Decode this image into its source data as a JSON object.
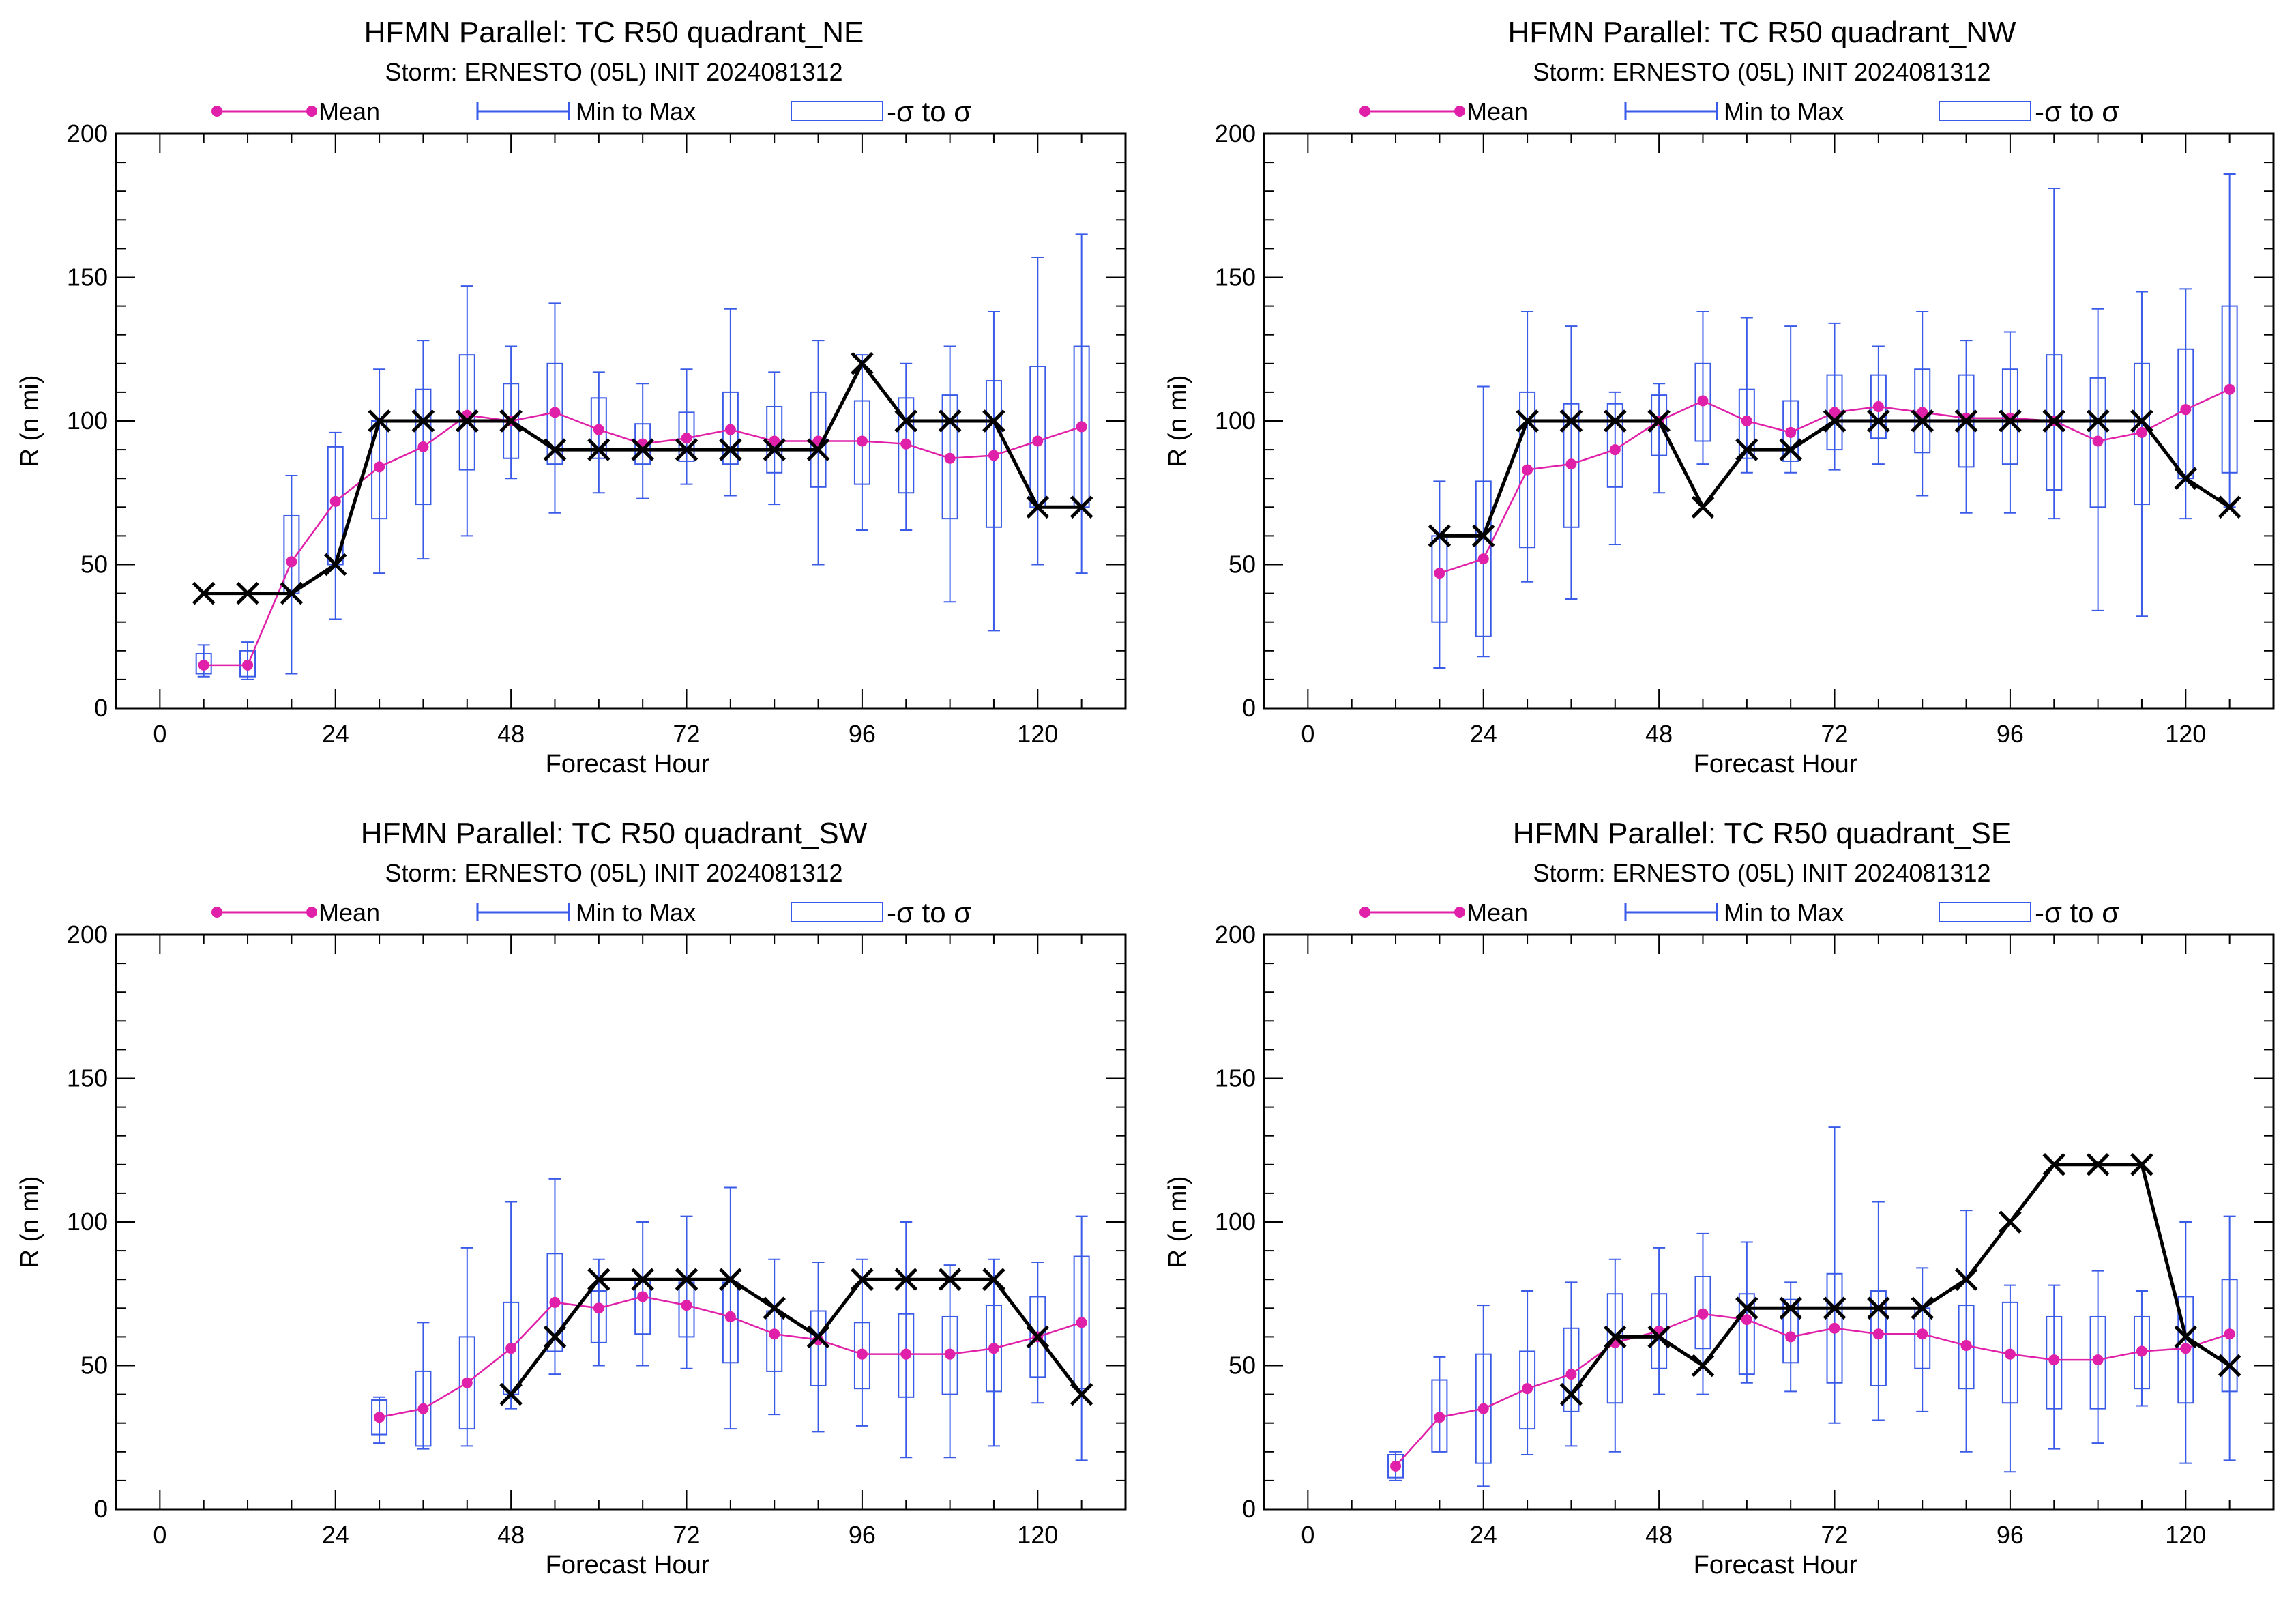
{
  "legend": {
    "mean_label": "Mean",
    "range_label": "Min to Max",
    "sigma_label": "-σ to σ"
  },
  "colors": {
    "mean": "#e020a8",
    "range": "#3a5ae8",
    "obs": "#000000",
    "axis": "#000000"
  },
  "chart_data": [
    {
      "type": "box",
      "title": "HFMN Parallel: TC  R50 quadrant_NE",
      "subtitle": "Storm: ERNESTO (05L) INIT 2024081312",
      "xlabel": "Forecast Hour",
      "ylabel": "R (n mi)",
      "xlim": [
        -6,
        132
      ],
      "ylim": [
        0,
        200
      ],
      "xticks": [
        0,
        24,
        48,
        72,
        96,
        120
      ],
      "yticks": [
        0,
        50,
        100,
        150,
        200
      ],
      "mean": [
        [
          6,
          15
        ],
        [
          12,
          15
        ],
        [
          18,
          51
        ],
        [
          24,
          72
        ],
        [
          30,
          84
        ],
        [
          36,
          91
        ],
        [
          42,
          102
        ],
        [
          48,
          100
        ],
        [
          54,
          103
        ],
        [
          60,
          97
        ],
        [
          66,
          92
        ],
        [
          72,
          94
        ],
        [
          78,
          97
        ],
        [
          84,
          93
        ],
        [
          90,
          93
        ],
        [
          96,
          93
        ],
        [
          102,
          92
        ],
        [
          108,
          87
        ],
        [
          114,
          88
        ],
        [
          120,
          93
        ],
        [
          126,
          98
        ]
      ],
      "boxes": [
        [
          6,
          11,
          22,
          12,
          19
        ],
        [
          12,
          10,
          23,
          11,
          20
        ],
        [
          18,
          12,
          81,
          40,
          67
        ],
        [
          24,
          31,
          96,
          50,
          91
        ],
        [
          30,
          47,
          118,
          66,
          100
        ],
        [
          36,
          52,
          128,
          71,
          111
        ],
        [
          42,
          60,
          147,
          83,
          123
        ],
        [
          48,
          80,
          126,
          87,
          113
        ],
        [
          54,
          68,
          141,
          85,
          120
        ],
        [
          60,
          75,
          117,
          87,
          108
        ],
        [
          66,
          73,
          113,
          85,
          99
        ],
        [
          72,
          78,
          118,
          86,
          103
        ],
        [
          78,
          74,
          139,
          85,
          110
        ],
        [
          84,
          71,
          117,
          82,
          105
        ],
        [
          90,
          50,
          128,
          77,
          110
        ],
        [
          96,
          62,
          123,
          78,
          107
        ],
        [
          102,
          62,
          120,
          75,
          108
        ],
        [
          108,
          37,
          126,
          66,
          109
        ],
        [
          114,
          27,
          138,
          63,
          114
        ],
        [
          120,
          50,
          157,
          70,
          119
        ],
        [
          126,
          47,
          165,
          70,
          126
        ]
      ],
      "obs": [
        [
          6,
          40
        ],
        [
          12,
          40
        ],
        [
          18,
          40
        ],
        [
          24,
          50
        ],
        [
          30,
          100
        ],
        [
          36,
          100
        ],
        [
          42,
          100
        ],
        [
          48,
          100
        ],
        [
          54,
          90
        ],
        [
          60,
          90
        ],
        [
          66,
          90
        ],
        [
          72,
          90
        ],
        [
          78,
          90
        ],
        [
          84,
          90
        ],
        [
          90,
          90
        ],
        [
          96,
          120
        ],
        [
          102,
          100
        ],
        [
          108,
          100
        ],
        [
          114,
          100
        ],
        [
          120,
          70
        ],
        [
          126,
          70
        ]
      ]
    },
    {
      "type": "box",
      "title": "HFMN Parallel: TC  R50 quadrant_NW",
      "subtitle": "Storm: ERNESTO (05L) INIT 2024081312",
      "xlabel": "Forecast Hour",
      "ylabel": "R (n mi)",
      "xlim": [
        -6,
        132
      ],
      "ylim": [
        0,
        200
      ],
      "xticks": [
        0,
        24,
        48,
        72,
        96,
        120
      ],
      "yticks": [
        0,
        50,
        100,
        150,
        200
      ],
      "mean": [
        [
          18,
          47
        ],
        [
          24,
          52
        ],
        [
          30,
          83
        ],
        [
          36,
          85
        ],
        [
          42,
          90
        ],
        [
          48,
          100
        ],
        [
          54,
          107
        ],
        [
          60,
          100
        ],
        [
          66,
          96
        ],
        [
          72,
          103
        ],
        [
          78,
          105
        ],
        [
          84,
          103
        ],
        [
          90,
          101
        ],
        [
          96,
          101
        ],
        [
          102,
          100
        ],
        [
          108,
          93
        ],
        [
          114,
          96
        ],
        [
          120,
          104
        ],
        [
          126,
          111
        ]
      ],
      "boxes": [
        [
          18,
          14,
          79,
          30,
          60
        ],
        [
          24,
          18,
          112,
          25,
          79
        ],
        [
          30,
          44,
          138,
          56,
          110
        ],
        [
          36,
          38,
          133,
          63,
          106
        ],
        [
          42,
          57,
          110,
          77,
          106
        ],
        [
          48,
          75,
          113,
          88,
          109
        ],
        [
          54,
          85,
          138,
          93,
          120
        ],
        [
          60,
          82,
          136,
          87,
          111
        ],
        [
          66,
          82,
          133,
          86,
          107
        ],
        [
          72,
          83,
          134,
          90,
          116
        ],
        [
          78,
          85,
          126,
          94,
          116
        ],
        [
          84,
          74,
          138,
          89,
          118
        ],
        [
          90,
          68,
          128,
          84,
          116
        ],
        [
          96,
          68,
          131,
          85,
          118
        ],
        [
          102,
          66,
          181,
          76,
          123
        ],
        [
          108,
          34,
          139,
          70,
          115
        ],
        [
          114,
          32,
          145,
          71,
          120
        ],
        [
          120,
          66,
          146,
          80,
          125
        ],
        [
          126,
          70,
          186,
          82,
          140
        ]
      ],
      "obs": [
        [
          18,
          60
        ],
        [
          24,
          60
        ],
        [
          30,
          100
        ],
        [
          36,
          100
        ],
        [
          42,
          100
        ],
        [
          48,
          100
        ],
        [
          54,
          70
        ],
        [
          60,
          90
        ],
        [
          66,
          90
        ],
        [
          72,
          100
        ],
        [
          78,
          100
        ],
        [
          84,
          100
        ],
        [
          90,
          100
        ],
        [
          96,
          100
        ],
        [
          102,
          100
        ],
        [
          108,
          100
        ],
        [
          114,
          100
        ],
        [
          120,
          80
        ],
        [
          126,
          70
        ]
      ]
    },
    {
      "type": "box",
      "title": "HFMN Parallel: TC  R50 quadrant_SW",
      "subtitle": "Storm: ERNESTO (05L) INIT 2024081312",
      "xlabel": "Forecast Hour",
      "ylabel": "R (n mi)",
      "xlim": [
        -6,
        132
      ],
      "ylim": [
        0,
        200
      ],
      "xticks": [
        0,
        24,
        48,
        72,
        96,
        120
      ],
      "yticks": [
        0,
        50,
        100,
        150,
        200
      ],
      "mean": [
        [
          30,
          32
        ],
        [
          36,
          35
        ],
        [
          42,
          44
        ],
        [
          48,
          56
        ],
        [
          54,
          72
        ],
        [
          60,
          70
        ],
        [
          66,
          74
        ],
        [
          72,
          71
        ],
        [
          78,
          67
        ],
        [
          84,
          61
        ],
        [
          90,
          59
        ],
        [
          96,
          54
        ],
        [
          102,
          54
        ],
        [
          108,
          54
        ],
        [
          114,
          56
        ],
        [
          120,
          60
        ],
        [
          126,
          65
        ]
      ],
      "boxes": [
        [
          30,
          23,
          39,
          26,
          38
        ],
        [
          36,
          21,
          65,
          22,
          48
        ],
        [
          42,
          22,
          91,
          28,
          60
        ],
        [
          48,
          35,
          107,
          40,
          72
        ],
        [
          54,
          47,
          115,
          55,
          89
        ],
        [
          60,
          50,
          87,
          58,
          76
        ],
        [
          66,
          50,
          100,
          61,
          80
        ],
        [
          72,
          49,
          102,
          60,
          79
        ],
        [
          78,
          28,
          112,
          51,
          79
        ],
        [
          84,
          33,
          87,
          48,
          69
        ],
        [
          90,
          27,
          86,
          43,
          69
        ],
        [
          96,
          29,
          87,
          42,
          65
        ],
        [
          102,
          18,
          100,
          39,
          68
        ],
        [
          108,
          18,
          85,
          40,
          67
        ],
        [
          114,
          22,
          87,
          41,
          71
        ],
        [
          120,
          37,
          86,
          46,
          74
        ],
        [
          126,
          17,
          102,
          42,
          88
        ]
      ],
      "obs": [
        [
          48,
          40
        ],
        [
          54,
          60
        ],
        [
          60,
          80
        ],
        [
          66,
          80
        ],
        [
          72,
          80
        ],
        [
          78,
          80
        ],
        [
          84,
          70
        ],
        [
          90,
          60
        ],
        [
          96,
          80
        ],
        [
          102,
          80
        ],
        [
          108,
          80
        ],
        [
          114,
          80
        ],
        [
          120,
          60
        ],
        [
          126,
          40
        ]
      ]
    },
    {
      "type": "box",
      "title": "HFMN Parallel: TC  R50 quadrant_SE",
      "subtitle": "Storm: ERNESTO (05L) INIT 2024081312",
      "xlabel": "Forecast Hour",
      "ylabel": "R (n mi)",
      "xlim": [
        -6,
        132
      ],
      "ylim": [
        0,
        200
      ],
      "xticks": [
        0,
        24,
        48,
        72,
        96,
        120
      ],
      "yticks": [
        0,
        50,
        100,
        150,
        200
      ],
      "mean": [
        [
          12,
          15
        ],
        [
          18,
          32
        ],
        [
          24,
          35
        ],
        [
          30,
          42
        ],
        [
          36,
          47
        ],
        [
          42,
          58
        ],
        [
          48,
          62
        ],
        [
          54,
          68
        ],
        [
          60,
          66
        ],
        [
          66,
          60
        ],
        [
          72,
          63
        ],
        [
          78,
          61
        ],
        [
          84,
          61
        ],
        [
          90,
          57
        ],
        [
          96,
          54
        ],
        [
          102,
          52
        ],
        [
          108,
          52
        ],
        [
          114,
          55
        ],
        [
          120,
          56
        ],
        [
          126,
          61
        ]
      ],
      "boxes": [
        [
          12,
          10,
          20,
          11,
          19
        ],
        [
          18,
          20,
          53,
          20,
          45
        ],
        [
          24,
          8,
          71,
          16,
          54
        ],
        [
          30,
          19,
          76,
          28,
          55
        ],
        [
          36,
          22,
          79,
          34,
          63
        ],
        [
          42,
          20,
          87,
          37,
          75
        ],
        [
          48,
          40,
          91,
          49,
          75
        ],
        [
          54,
          40,
          96,
          56,
          81
        ],
        [
          60,
          44,
          93,
          47,
          75
        ],
        [
          66,
          41,
          79,
          51,
          73
        ],
        [
          72,
          30,
          133,
          44,
          82
        ],
        [
          78,
          31,
          107,
          43,
          76
        ],
        [
          84,
          34,
          84,
          49,
          70
        ],
        [
          90,
          20,
          104,
          42,
          71
        ],
        [
          96,
          13,
          78,
          37,
          72
        ],
        [
          102,
          21,
          78,
          35,
          67
        ],
        [
          108,
          23,
          83,
          35,
          67
        ],
        [
          114,
          36,
          76,
          42,
          67
        ],
        [
          120,
          16,
          100,
          37,
          74
        ],
        [
          126,
          17,
          102,
          41,
          80
        ]
      ],
      "obs": [
        [
          36,
          40
        ],
        [
          42,
          60
        ],
        [
          48,
          60
        ],
        [
          54,
          50
        ],
        [
          60,
          70
        ],
        [
          66,
          70
        ],
        [
          72,
          70
        ],
        [
          78,
          70
        ],
        [
          84,
          70
        ],
        [
          90,
          80
        ],
        [
          96,
          100
        ],
        [
          102,
          120
        ],
        [
          108,
          120
        ],
        [
          114,
          120
        ],
        [
          120,
          60
        ],
        [
          126,
          50
        ]
      ]
    }
  ]
}
